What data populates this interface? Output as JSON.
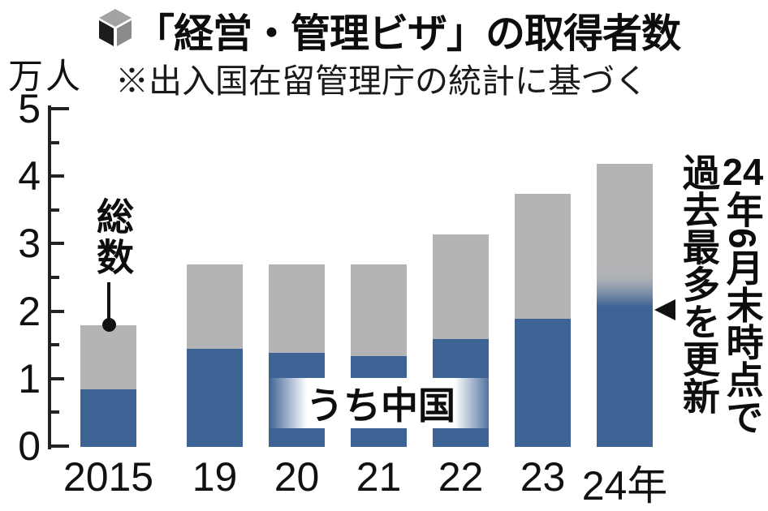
{
  "header": {
    "title": "「経営・管理ビザ」の取得者数",
    "subtitle": "※出入国在留管理庁の統計に基づく"
  },
  "chart_data": {
    "type": "bar",
    "stacked": true,
    "title": "「経営・管理ビザ」の取得者数",
    "source_note": "※出入国在留管理庁の統計に基づく",
    "unit_label": "万人",
    "categories": [
      "2015",
      "19",
      "20",
      "21",
      "22",
      "23",
      "24年"
    ],
    "series": [
      {
        "name": "総数",
        "color": "#b4b4b6",
        "values": [
          1.8,
          2.7,
          2.7,
          2.7,
          3.15,
          3.75,
          4.2
        ]
      },
      {
        "name": "うち中国",
        "color": "#3e6395",
        "values": [
          0.85,
          1.45,
          1.4,
          1.35,
          1.6,
          1.9,
          2.1
        ]
      }
    ],
    "ylim": [
      0,
      5
    ],
    "ytick_step": 1,
    "minor_tick_step": 0.5,
    "ytick_labels": [
      "5",
      "4",
      "3",
      "2",
      "1",
      "0"
    ],
    "grid": false,
    "legend_position": "none (in-chart labels)",
    "last_bar_note": "2024年の中国分の上端はグラデーション（年央時点の値）"
  },
  "annotations": {
    "total_label": "総数",
    "china_band_label": "うち中国",
    "right_note_tcy": "24",
    "right_note_col1_rest": "年6月末時点で",
    "right_note_col2": "過去最多を更新"
  },
  "colors": {
    "china_blue": "#3e6395",
    "total_gray": "#b4b4b6",
    "text": "#111111",
    "axis": "#222222",
    "background": "#ffffff",
    "cube_top": "#a3a3a5",
    "cube_left": "#1c1c1c",
    "cube_right": "#8b8b8d"
  }
}
